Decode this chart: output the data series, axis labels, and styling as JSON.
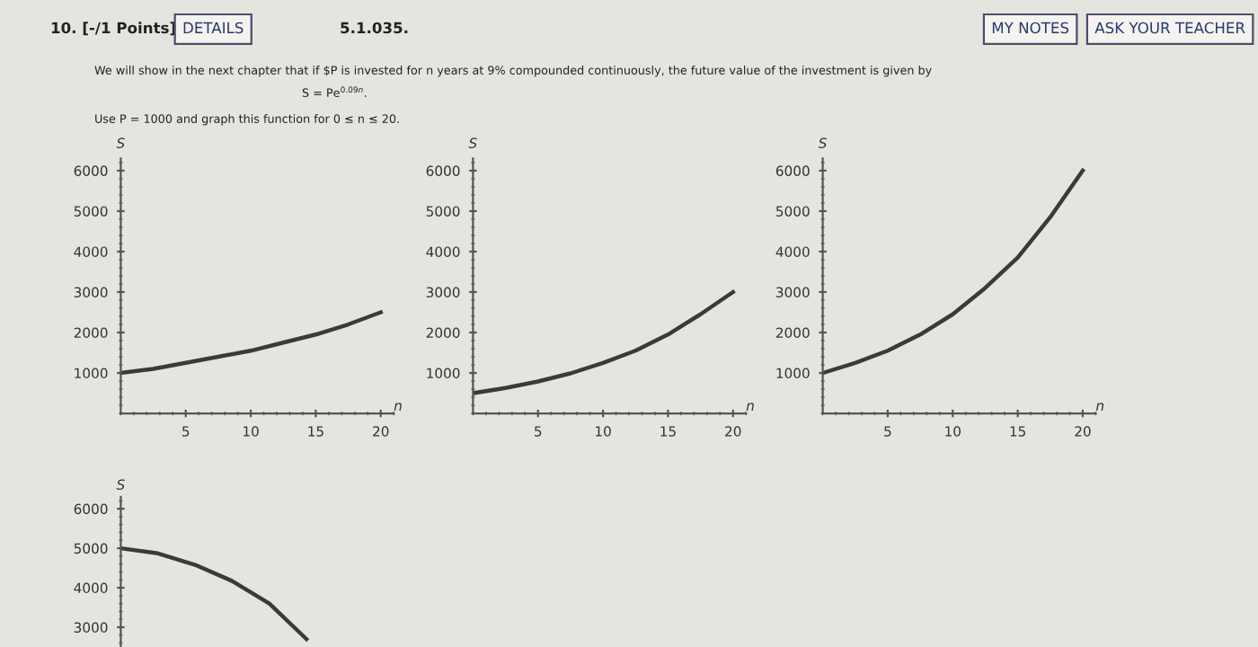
{
  "chart_data": [
    {
      "type": "line",
      "xlabel": "n",
      "ylabel": "S",
      "x": [
        0,
        2.5,
        5,
        7.5,
        10,
        12.5,
        15,
        17.5,
        20
      ],
      "xlim": [
        0,
        21
      ],
      "ylim": [
        0,
        6300
      ],
      "xticks": [
        5,
        10,
        15,
        20
      ],
      "yticks": [
        1000,
        2000,
        3000,
        4000,
        5000,
        6000
      ],
      "grid": false,
      "legend": false,
      "series": [
        {
          "color": "#3a3a3a",
          "values": [
            1000,
            1100,
            1250,
            1400,
            1550,
            1750,
            1950,
            2200,
            2500
          ]
        }
      ],
      "annotations": [
        "10. [-/1 Points]",
        "DETAILS",
        "5.1.035.",
        "MY NOTES",
        "ASK YOUR TEACHER",
        "We will show in the next chapter that if $P is invested for n years at 9% compounded continuously, the future value of the investment is given by",
        "S = Pe$^{0.09n}$.",
        "Use P = 1000 and graph this function for 0 ≤ n ≤ 20."
      ]
    },
    {
      "type": "line",
      "xlabel": "n",
      "ylabel": "S",
      "x": [
        0,
        2.5,
        5,
        7.5,
        10,
        12.5,
        15,
        17.5,
        20
      ],
      "xlim": [
        0,
        21
      ],
      "ylim": [
        0,
        6300
      ],
      "xticks": [
        5,
        10,
        15,
        20
      ],
      "yticks": [
        1000,
        2000,
        3000,
        4000,
        5000,
        6000
      ],
      "grid": false,
      "legend": false,
      "series": [
        {
          "color": "#3a3a3a",
          "values": [
            500,
            630,
            790,
            990,
            1250,
            1550,
            1950,
            2450,
            3000
          ]
        }
      ]
    },
    {
      "type": "line",
      "xlabel": "n",
      "ylabel": "S",
      "x": [
        0,
        2.5,
        5,
        7.5,
        10,
        12.5,
        15,
        17.5,
        20
      ],
      "xlim": [
        0,
        21
      ],
      "ylim": [
        0,
        6300
      ],
      "xticks": [
        5,
        10,
        15,
        20
      ],
      "yticks": [
        1000,
        2000,
        3000,
        4000,
        5000,
        6000
      ],
      "grid": false,
      "legend": false,
      "series": [
        {
          "color": "#3a3a3a",
          "values": [
            1000,
            1250,
            1550,
            1950,
            2450,
            3100,
            3850,
            4850,
            6000
          ]
        }
      ]
    },
    {
      "type": "line",
      "ylabel": "S",
      "categories": [
        null,
        null,
        null,
        null,
        null,
        null
      ],
      "ylim": [
        2500,
        6300
      ],
      "yticks": [
        3000,
        4000,
        5000,
        6000
      ],
      "grid": false,
      "legend": false,
      "tick_labels": "y",
      "series": [
        {
          "color": "#3a3a3a",
          "values": [
            5000,
            4870,
            4580,
            4170,
            3600,
            2700
          ]
        }
      ]
    }
  ]
}
